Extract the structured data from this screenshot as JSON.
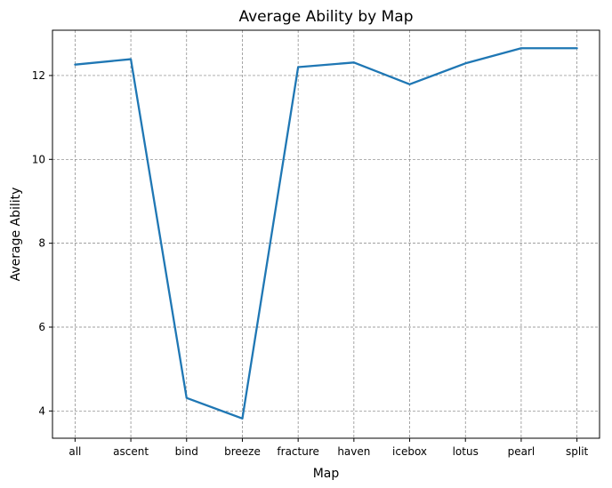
{
  "chart_data": {
    "type": "line",
    "title": "Average Ability by Map",
    "xlabel": "Map",
    "ylabel": "Average Ability",
    "categories": [
      "all",
      "ascent",
      "bind",
      "breeze",
      "fracture",
      "haven",
      "icebox",
      "lotus",
      "pearl",
      "split"
    ],
    "series": [
      {
        "values": [
          12.26,
          12.39,
          4.31,
          3.82,
          12.2,
          12.31,
          11.79,
          12.29,
          12.65,
          12.65
        ],
        "color": "#1f77b4"
      }
    ],
    "yticks": [
      4,
      6,
      8,
      10,
      12
    ],
    "ylim": [
      3.35,
      13.08
    ],
    "grid": true,
    "grid_color": "#808080",
    "legend": "none"
  }
}
